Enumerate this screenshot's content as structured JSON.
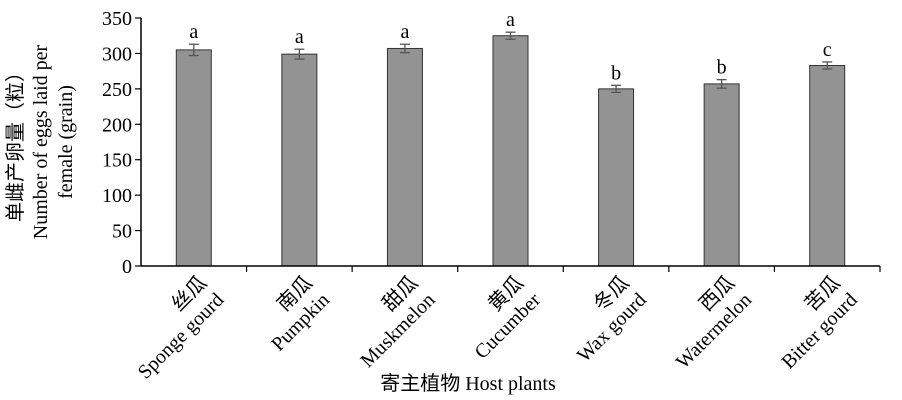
{
  "chart_data": {
    "type": "bar",
    "categories": [
      {
        "cn": "丝瓜",
        "en": "Sponge gourd"
      },
      {
        "cn": "南瓜",
        "en": "Pumpkin"
      },
      {
        "cn": "甜瓜",
        "en": "Muskmelon"
      },
      {
        "cn": "黄瓜",
        "en": "Cucumber"
      },
      {
        "cn": "冬瓜",
        "en": "Wax gourd"
      },
      {
        "cn": "西瓜",
        "en": "Watermelon"
      },
      {
        "cn": "苦瓜",
        "en": "Bitter gourd"
      }
    ],
    "values": [
      305,
      299,
      307,
      325,
      250,
      257,
      283
    ],
    "errors": [
      8,
      7,
      6,
      5,
      5,
      6,
      5
    ],
    "significance": [
      "a",
      "a",
      "a",
      "a",
      "b",
      "b",
      "c"
    ],
    "xlabel": "寄主植物 Host plants",
    "ylabel": [
      "单雌产卵量（粒）",
      "Number of eggs laid per",
      "female (grain)"
    ],
    "ylim": [
      0,
      350
    ],
    "yticks": [
      0,
      50,
      100,
      150,
      200,
      250,
      300,
      350
    ],
    "grid": false,
    "bar_color": "#939393",
    "error_bar_color": "#555555"
  }
}
